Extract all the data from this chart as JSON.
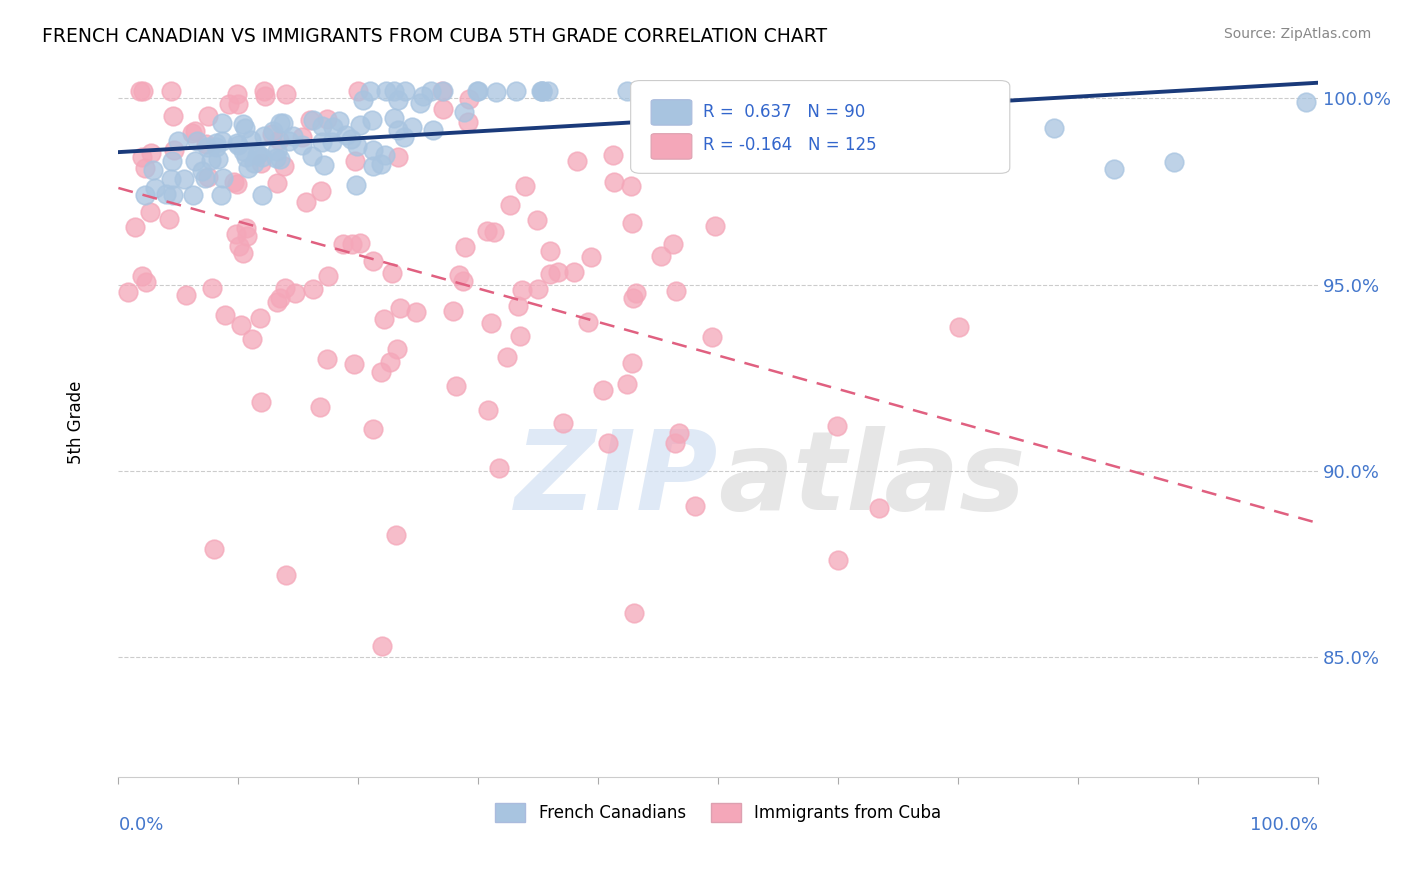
{
  "title": "FRENCH CANADIAN VS IMMIGRANTS FROM CUBA 5TH GRADE CORRELATION CHART",
  "source_text": "Source: ZipAtlas.com",
  "ylabel": "5th Grade",
  "xmin": 0.0,
  "xmax": 1.0,
  "ymin": 0.818,
  "ymax": 1.008,
  "yticks": [
    0.85,
    0.9,
    0.95,
    1.0
  ],
  "ytick_labels": [
    "85.0%",
    "90.0%",
    "95.0%",
    "100.0%"
  ],
  "blue_R": 0.637,
  "blue_N": 90,
  "pink_R": -0.164,
  "pink_N": 125,
  "blue_color": "#a8c4e0",
  "pink_color": "#f4a7b9",
  "blue_line_color": "#1a3a7a",
  "pink_line_color": "#e06080",
  "legend_label_blue": "French Canadians",
  "legend_label_pink": "Immigrants from Cuba",
  "watermark_color_zip": "#c0d4ee",
  "watermark_color_atlas": "#c8c8c8",
  "grid_color": "#cccccc",
  "title_color": "#000000",
  "axis_label_color": "#4477cc",
  "legend_R_color": "#3366cc",
  "blue_scatter_seed": 42,
  "pink_scatter_seed": 7
}
